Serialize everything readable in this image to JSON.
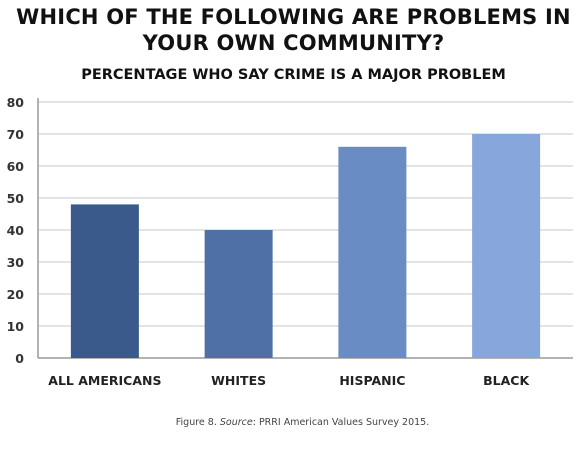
{
  "title_line1": "WHICH OF THE FOLLOWING ARE PROBLEMS IN",
  "title_line2": "YOUR OWN COMMUNITY?",
  "chart_data": {
    "type": "bar",
    "title": "WHICH OF THE FOLLOWING ARE PROBLEMS IN YOUR OWN COMMUNITY?",
    "subtitle": "PERCENTAGE WHO SAY CRIME IS A MAJOR PROBLEM",
    "categories": [
      "ALL AMERICANS",
      "WHITES",
      "HISPANIC",
      "BLACK"
    ],
    "values": [
      48,
      40,
      66,
      70
    ],
    "bar_colors": [
      "#3a5a8c",
      "#4e70a6",
      "#6a8cc4",
      "#87a6dc"
    ],
    "ylim": [
      0,
      80
    ],
    "yticks": [
      "0",
      "10",
      "20",
      "30",
      "40",
      "50",
      "60",
      "70",
      "80"
    ],
    "xlabel": "",
    "ylabel": "",
    "grid": true,
    "legend": "none"
  },
  "caption": {
    "prefix": "Figure 8.",
    "source_label": "Source",
    "text": ": PRRI American Values Survey 2015."
  }
}
